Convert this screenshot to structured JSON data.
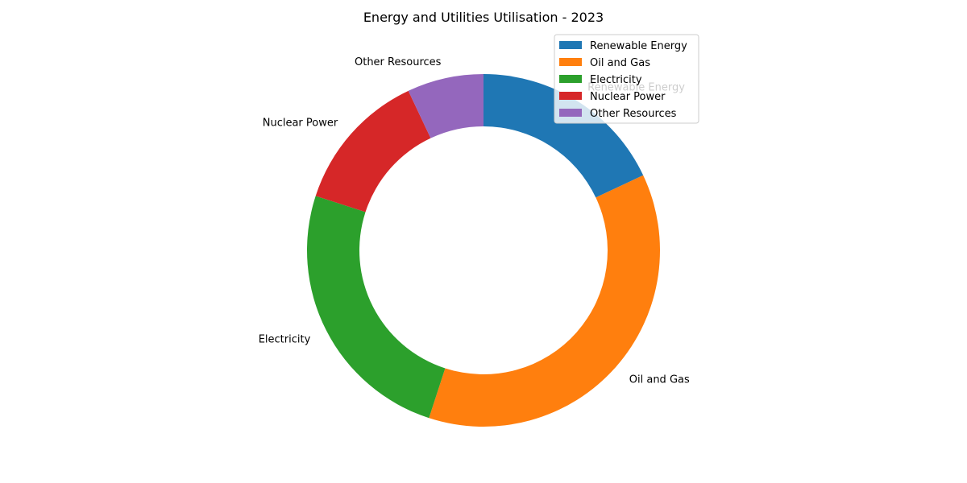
{
  "chart_data": {
    "type": "pie",
    "variant": "donut",
    "title": "Energy and Utilities Utilisation - 2023",
    "categories": [
      "Renewable Energy",
      "Oil and Gas",
      "Electricity",
      "Nuclear Power",
      "Other Resources"
    ],
    "values": [
      18,
      37,
      25,
      13,
      7
    ],
    "colors": [
      "#1f77b4",
      "#ff7f0e",
      "#2ca02c",
      "#d62728",
      "#9467bd"
    ],
    "legend": {
      "position": "top-right",
      "entries": [
        "Renewable Energy",
        "Oil and Gas",
        "Electricity",
        "Nuclear Power",
        "Other Resources"
      ]
    },
    "start_angle": "top",
    "direction": "clockwise"
  }
}
